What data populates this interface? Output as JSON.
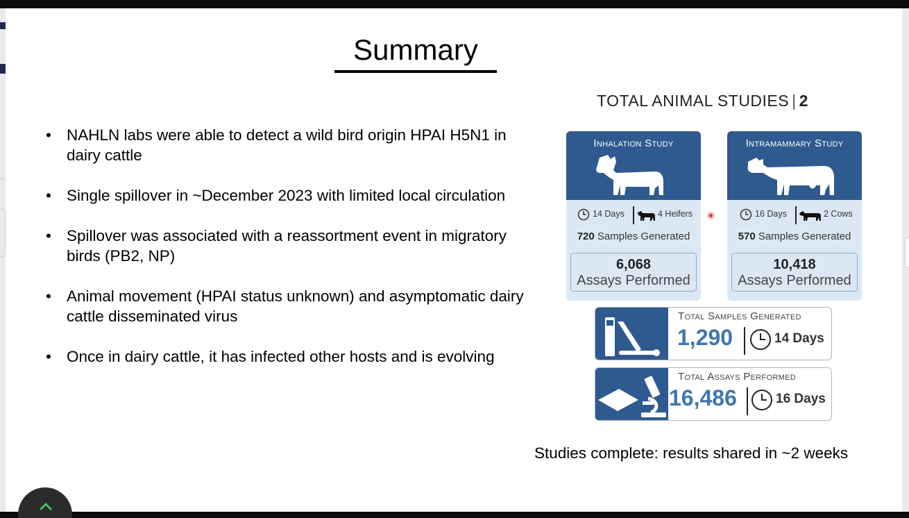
{
  "slide": {
    "title": "Summary",
    "bullets": [
      "NAHLN labs were able to detect a wild bird origin HPAI H5N1 in dairy cattle",
      "Single spillover in ~December 2023 with limited local circulation",
      "Spillover was associated with a reassortment event in migratory birds (PB2, NP)",
      "Animal movement (HPAI status unknown) and asymptomatic dairy cattle disseminated virus",
      "Once in dairy cattle, it has infected other hosts and is evolving"
    ],
    "bullet_glyph": "•",
    "footer_note": "Studies complete: results shared in ~2 weeks"
  },
  "infographic": {
    "header_label": "TOTAL ANIMAL STUDIES",
    "header_sep": "|",
    "header_count": "2",
    "studies": [
      {
        "title": "Inhalation Study",
        "days": "14 Days",
        "animals": "4 Heifers",
        "samples_count": "720",
        "samples_label": "Samples Generated",
        "assays_count": "6,068",
        "assays_label": "Assays Performed"
      },
      {
        "title": "Intramammary Study",
        "days": "16 Days",
        "animals": "2 Cows",
        "samples_count": "570",
        "samples_label": "Samples Generated",
        "assays_count": "10,418",
        "assays_label": "Assays Performed"
      }
    ],
    "totals": [
      {
        "label": "Total Samples Generated",
        "value": "1,290",
        "days": "14 Days",
        "icon": "test-tubes-icon"
      },
      {
        "label": "Total Assays Performed",
        "value": "16,486",
        "days": "16 Days",
        "icon": "microscope-icon"
      }
    ]
  },
  "colors": {
    "study_header": "#2f5a8f",
    "study_body": "#dbe8f4",
    "total_number": "#3c77b1",
    "pointer_dot": "#d9363e"
  }
}
